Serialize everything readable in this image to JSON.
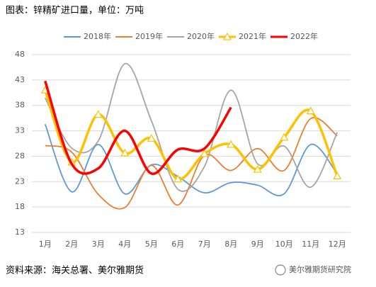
{
  "chart_data": {
    "type": "line",
    "title": "图表：锌精矿进口量，单位：万吨",
    "source": "资料来源：海关总署、美尔雅期货",
    "watermark": "美尔雅期货研究院",
    "categories": [
      "1月",
      "2月",
      "3月",
      "4月",
      "5月",
      "6月",
      "7月",
      "8月",
      "9月",
      "10月",
      "11月",
      "12月"
    ],
    "series": [
      {
        "name": "2018年",
        "color": "#5b9bd5",
        "values": [
          34.3,
          21.0,
          30.3,
          20.6,
          26.3,
          24.0,
          20.8,
          22.8,
          22.3,
          20.6,
          30.3,
          24.5
        ]
      },
      {
        "name": "2019年",
        "color": "#ed7d31",
        "values": [
          30.1,
          28.8,
          20.5,
          17.9,
          26.2,
          18.4,
          28.2,
          25.2,
          29.5,
          25.2,
          35.4,
          32.0
        ]
      },
      {
        "name": "2020年",
        "color": "#a5a5a5",
        "values": [
          39.5,
          29.6,
          31.0,
          46.2,
          35.0,
          21.5,
          26.0,
          41.0,
          26.5,
          30.0,
          21.9,
          32.7
        ]
      },
      {
        "name": "2021年",
        "color": "#ffc000",
        "marker": "triangle",
        "values": [
          41.0,
          26.8,
          36.2,
          28.6,
          31.5,
          23.5,
          28.5,
          30.3,
          25.4,
          31.7,
          36.9,
          24.1
        ]
      },
      {
        "name": "2022年",
        "color": "#ff0000",
        "values": [
          42.8,
          26.5,
          25.6,
          33.0,
          24.6,
          29.3,
          29.5,
          37.6,
          null,
          null,
          null,
          null
        ]
      }
    ],
    "ylim": [
      13,
      48
    ],
    "yticks": [
      13,
      18,
      23,
      28,
      33,
      38,
      43,
      48
    ],
    "grid": true,
    "legend": "top"
  }
}
